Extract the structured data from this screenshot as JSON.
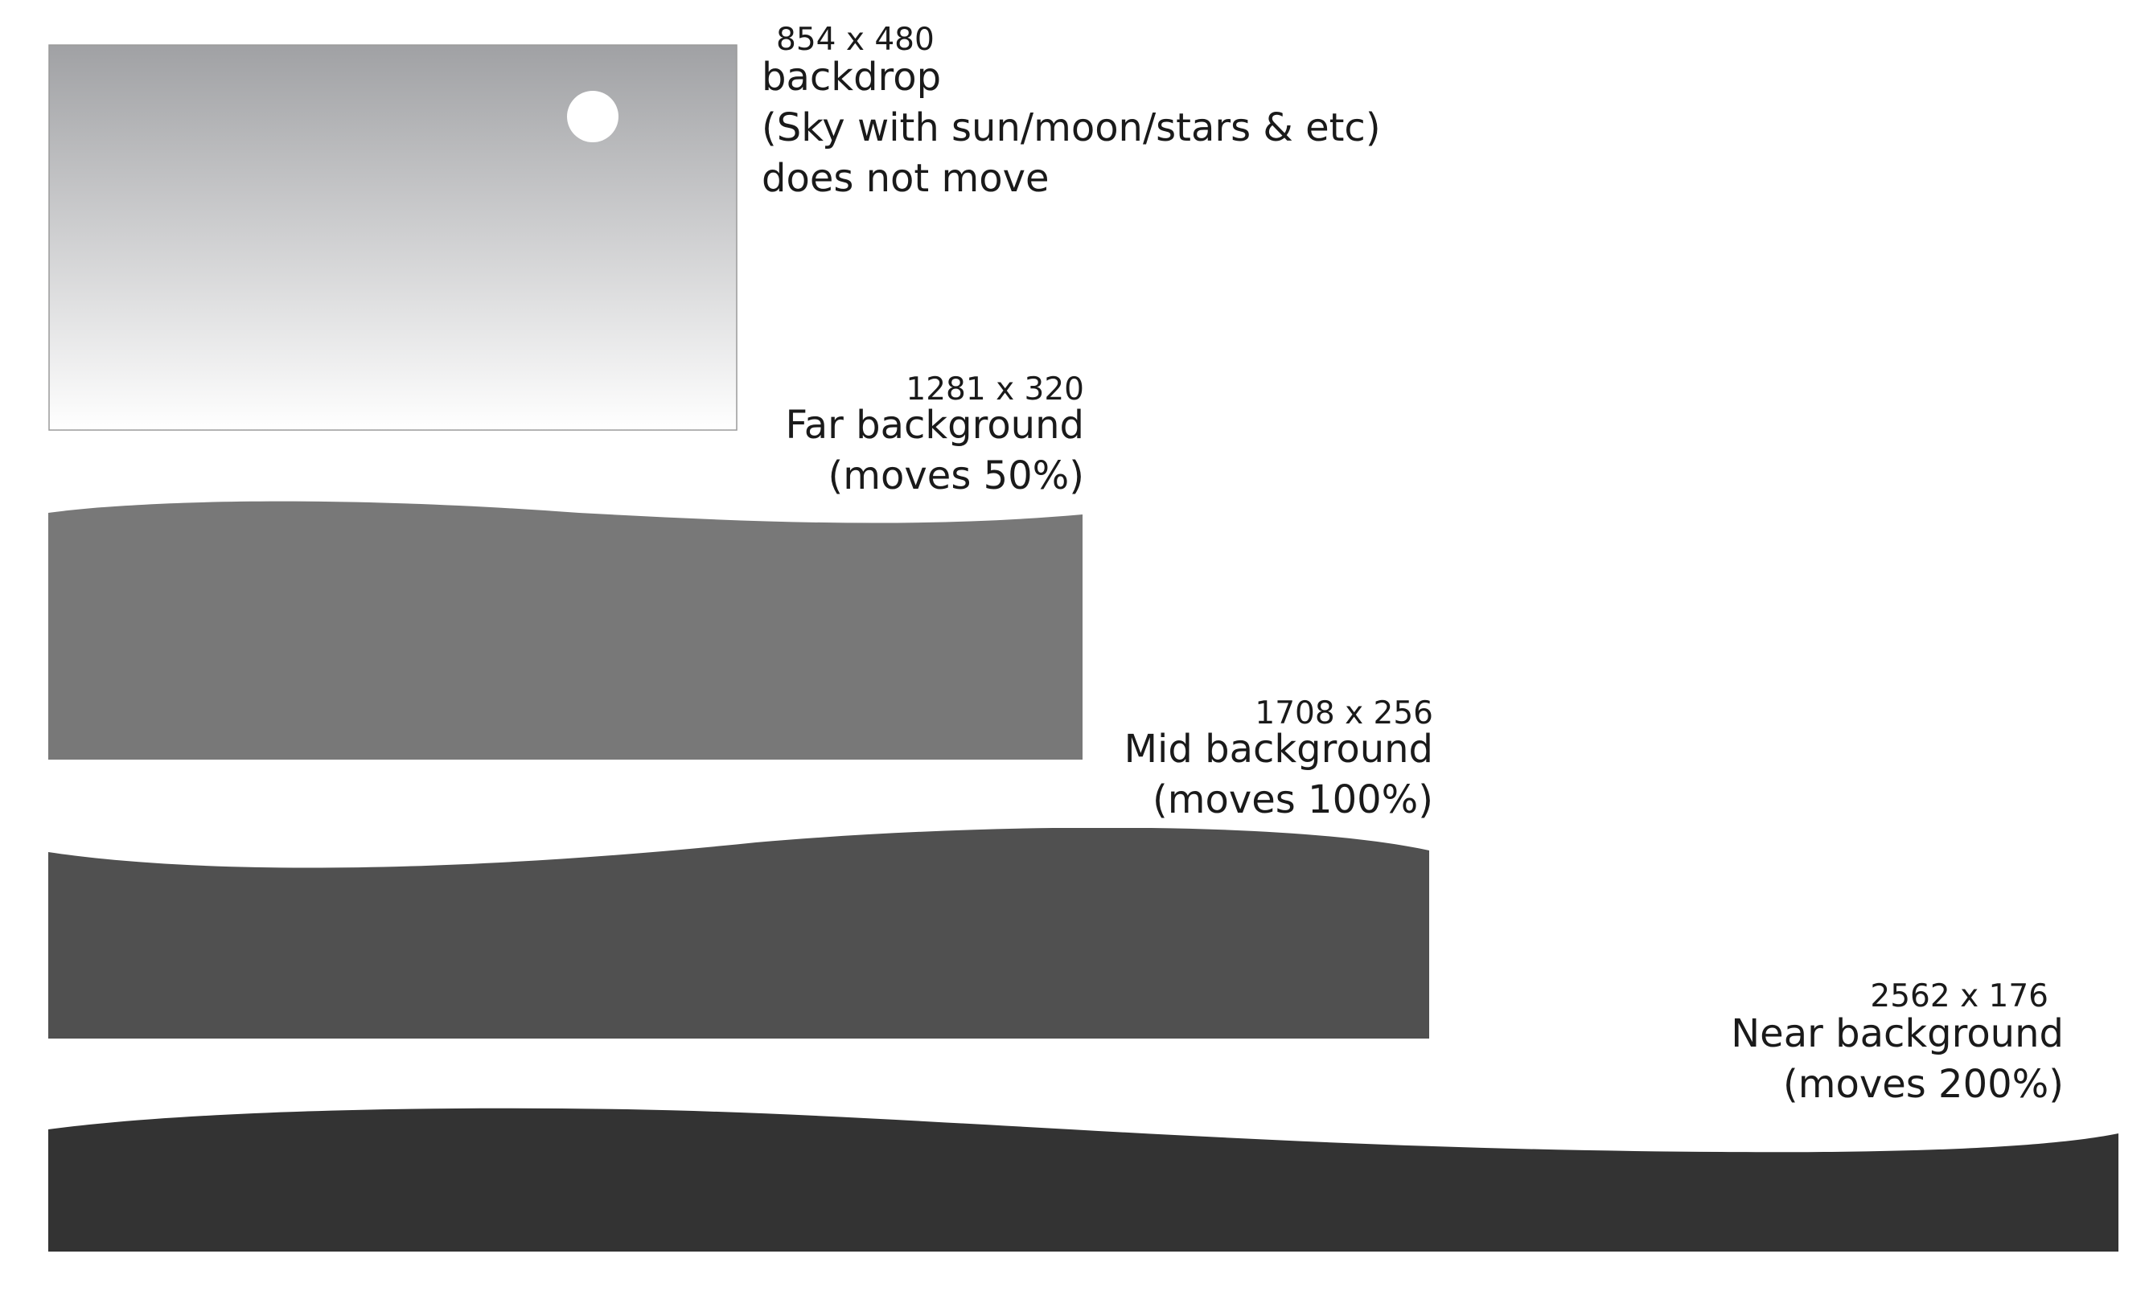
{
  "diagram": {
    "backdrop": {
      "dimensions": "854 x 480",
      "title": "backdrop",
      "description": "(Sky with sun/moon/stars & etc)",
      "motion": "does not move",
      "gradient_top": "#a0a1a4",
      "gradient_bottom": "#ffffff",
      "sun_color": "#ffffff"
    },
    "far": {
      "dimensions": "1281 x 320",
      "title": "Far background",
      "motion": "(moves 50%)",
      "color": "#787878"
    },
    "mid": {
      "dimensions": "1708 x 256",
      "title": "Mid background",
      "motion": "(moves 100%)",
      "color": "#505050"
    },
    "near": {
      "dimensions": "2562 x 176",
      "title": "Near background",
      "motion": "(moves 200%)",
      "color": "#333333"
    }
  }
}
